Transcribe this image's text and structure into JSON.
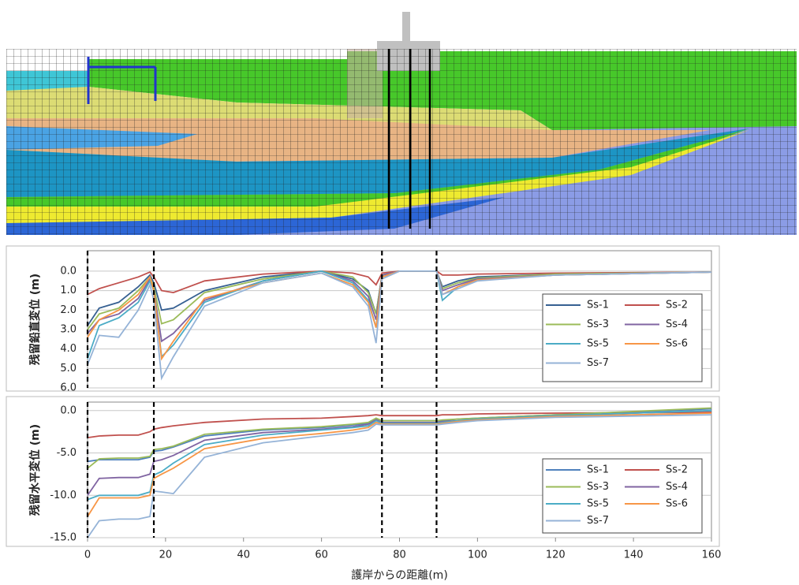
{
  "chart_data": [
    {
      "type": "line",
      "ylabel": "残留鉛直変位 (m)",
      "x": [
        0,
        3,
        8,
        13,
        16,
        17,
        19,
        22,
        30,
        45,
        60,
        68,
        72,
        74,
        75.5,
        80,
        89.5,
        91,
        95,
        100,
        120,
        160
      ],
      "xlim": [
        0,
        160
      ],
      "ylim": [
        6,
        -1.05
      ],
      "yticks": [
        {
          "value": 0,
          "label": "0.0"
        },
        {
          "value": 1,
          "label": "1.0"
        },
        {
          "value": 2,
          "label": "2.0"
        },
        {
          "value": 3,
          "label": "3.0"
        },
        {
          "value": 4,
          "label": "4.0"
        },
        {
          "value": 5,
          "label": "5.0"
        },
        {
          "value": 6,
          "label": "6.0"
        }
      ],
      "grid": true,
      "legend": "lower right",
      "vlines": [
        0,
        17,
        75.5,
        89.5
      ],
      "series": [
        {
          "name": "Ss-1",
          "color": "#366092",
          "values": [
            2.8,
            1.9,
            1.6,
            0.8,
            0.2,
            0.6,
            2.0,
            1.9,
            1.0,
            0.3,
            0.0,
            0.4,
            1.0,
            2.2,
            0.2,
            0,
            0,
            0.8,
            0.5,
            0.3,
            0.15,
            0.05
          ]
        },
        {
          "name": "Ss-2",
          "color": "#c0504d",
          "values": [
            1.2,
            0.9,
            0.6,
            0.3,
            0.05,
            0.3,
            1.0,
            1.1,
            0.5,
            0.15,
            0.0,
            0.1,
            0.3,
            0.7,
            0.1,
            0,
            0,
            0.2,
            0.2,
            0.15,
            0.1,
            0.05
          ]
        },
        {
          "name": "Ss-3",
          "color": "#9bbb59",
          "values": [
            3.0,
            2.2,
            1.9,
            1.0,
            0.3,
            0.8,
            2.7,
            2.5,
            1.1,
            0.4,
            0.0,
            0.3,
            1.1,
            2.2,
            0.2,
            0,
            0,
            0.9,
            0.6,
            0.35,
            0.15,
            0.05
          ]
        },
        {
          "name": "Ss-4",
          "color": "#8064a2",
          "values": [
            3.2,
            2.5,
            2.2,
            1.4,
            0.4,
            1.0,
            3.6,
            3.2,
            1.5,
            0.5,
            0.0,
            0.5,
            1.3,
            2.5,
            0.2,
            0,
            0,
            1.0,
            0.7,
            0.4,
            0.2,
            0.05
          ]
        },
        {
          "name": "Ss-5",
          "color": "#4bacc6",
          "values": [
            4.5,
            2.8,
            2.4,
            1.6,
            0.5,
            1.0,
            4.4,
            3.8,
            1.6,
            0.5,
            0.0,
            0.6,
            1.5,
            2.9,
            0.3,
            0,
            0,
            1.5,
            0.8,
            0.45,
            0.2,
            0.05
          ]
        },
        {
          "name": "Ss-6",
          "color": "#f79646",
          "values": [
            3.4,
            2.5,
            2.0,
            1.2,
            0.3,
            1.0,
            4.5,
            3.6,
            1.4,
            0.6,
            0.1,
            0.7,
            1.6,
            2.9,
            0.3,
            0,
            0,
            1.2,
            0.8,
            0.45,
            0.2,
            0.05
          ]
        },
        {
          "name": "Ss-7",
          "color": "#95b3d7",
          "values": [
            4.8,
            3.3,
            3.4,
            2.0,
            0.7,
            1.5,
            5.5,
            4.4,
            1.8,
            0.6,
            0.1,
            0.8,
            1.8,
            3.7,
            0.4,
            0,
            0,
            1.2,
            0.9,
            0.5,
            0.2,
            0.05
          ]
        }
      ]
    },
    {
      "type": "line",
      "ylabel": "残留水平変位 (m)",
      "xlabel": "護岸からの距離(m)",
      "x": [
        0,
        3,
        8,
        13,
        16,
        17,
        19,
        22,
        30,
        45,
        60,
        68,
        72,
        74,
        75.5,
        80,
        89.5,
        91,
        95,
        100,
        120,
        160
      ],
      "xlim": [
        0,
        160
      ],
      "xticks": [
        0,
        20,
        40,
        60,
        80,
        100,
        120,
        140,
        160
      ],
      "ylim": [
        -15,
        1
      ],
      "yticks": [
        {
          "value": 0,
          "label": "0.0"
        },
        {
          "value": -5,
          "label": "-5.0"
        },
        {
          "value": -10,
          "label": "-10.0"
        },
        {
          "value": -15,
          "label": "-15.0"
        }
      ],
      "grid": true,
      "legend": "lower right",
      "vlines": [
        0,
        17,
        75.5,
        89.5
      ],
      "series": [
        {
          "name": "Ss-1",
          "color": "#4f81bd",
          "values": [
            -6.0,
            -5.8,
            -5.8,
            -5.8,
            -5.5,
            -4.8,
            -4.7,
            -4.3,
            -3.0,
            -2.3,
            -2.0,
            -1.7,
            -1.5,
            -1.0,
            -1.2,
            -1.2,
            -1.2,
            -1.2,
            -1.0,
            -0.9,
            -0.5,
            0.2
          ]
        },
        {
          "name": "Ss-2",
          "color": "#c0504d",
          "values": [
            -3.2,
            -3.0,
            -2.9,
            -2.9,
            -2.5,
            -2.2,
            -2.0,
            -1.8,
            -1.4,
            -1.0,
            -0.9,
            -0.7,
            -0.6,
            -0.5,
            -0.6,
            -0.6,
            -0.6,
            -0.5,
            -0.5,
            -0.4,
            -0.3,
            -0.2
          ]
        },
        {
          "name": "Ss-3",
          "color": "#9bbb59",
          "values": [
            -6.8,
            -5.7,
            -5.6,
            -5.6,
            -5.4,
            -4.6,
            -4.5,
            -4.2,
            -2.8,
            -2.2,
            -1.9,
            -1.6,
            -1.4,
            -0.9,
            -1.2,
            -1.2,
            -1.2,
            -1.1,
            -1.0,
            -0.9,
            -0.5,
            0.3
          ]
        },
        {
          "name": "Ss-4",
          "color": "#8064a2",
          "values": [
            -10,
            -8,
            -7.9,
            -7.9,
            -7.5,
            -6.0,
            -5.8,
            -5.3,
            -3.5,
            -2.6,
            -2.2,
            -1.9,
            -1.6,
            -1.1,
            -1.4,
            -1.4,
            -1.4,
            -1.3,
            -1.2,
            -1.0,
            -0.6,
            0.0
          ]
        },
        {
          "name": "Ss-5",
          "color": "#4bacc6",
          "values": [
            -10.5,
            -10,
            -10,
            -10,
            -9.6,
            -7.6,
            -7.2,
            -6.2,
            -4.0,
            -2.9,
            -2.3,
            -2.0,
            -1.8,
            -1.2,
            -1.5,
            -1.5,
            -1.5,
            -1.4,
            -1.2,
            -1.0,
            -0.6,
            0.0
          ]
        },
        {
          "name": "Ss-6",
          "color": "#f79646",
          "values": [
            -12.5,
            -10.3,
            -10.3,
            -10.3,
            -10,
            -8.0,
            -7.5,
            -6.8,
            -4.5,
            -3.3,
            -2.7,
            -2.3,
            -2.0,
            -1.4,
            -1.6,
            -1.6,
            -1.6,
            -1.5,
            -1.3,
            -1.1,
            -0.7,
            -0.3
          ]
        },
        {
          "name": "Ss-7",
          "color": "#95b3d7",
          "values": [
            -15,
            -13,
            -12.8,
            -12.8,
            -12.5,
            -9.5,
            -9.6,
            -9.8,
            -5.5,
            -3.8,
            -3.0,
            -2.6,
            -2.3,
            -1.6,
            -1.7,
            -1.7,
            -1.7,
            -1.6,
            -1.4,
            -1.2,
            -0.8,
            -0.5
          ]
        }
      ]
    }
  ]
}
